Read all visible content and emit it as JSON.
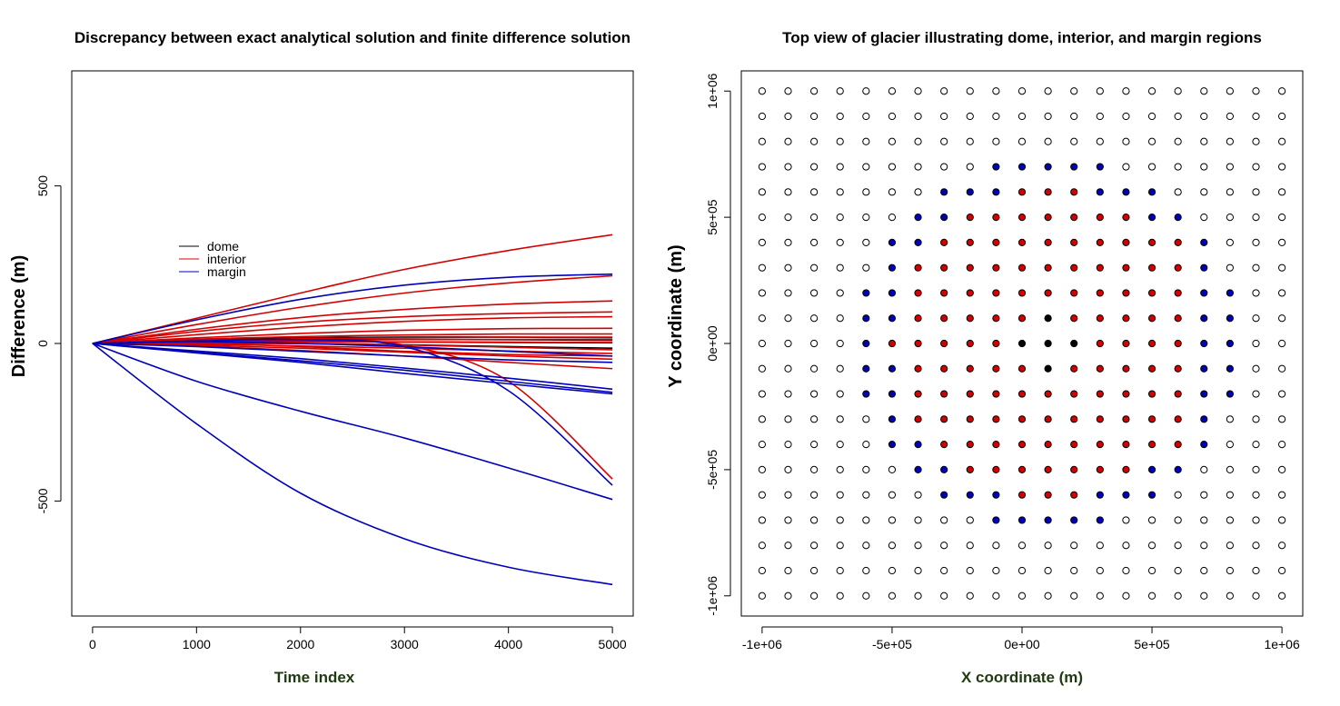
{
  "colors": {
    "dome": "#000000",
    "interior": "#d40000",
    "margin": "#0000b8"
  },
  "chart_data": [
    {
      "type": "line",
      "title": "Discrepancy between exact analytical solution and finite difference solution",
      "xlabel": "Time index",
      "ylabel": "Difference (m)",
      "xlim": [
        -200,
        5200
      ],
      "ylim": [
        -865,
        865
      ],
      "xticks": [
        0,
        1000,
        2000,
        3000,
        4000,
        5000
      ],
      "xtick_labels": [
        "0",
        "1000",
        "2000",
        "3000",
        "4000",
        "5000"
      ],
      "yticks": [
        -500,
        0,
        500
      ],
      "ytick_labels": [
        "-500",
        "0",
        "500"
      ],
      "legend": {
        "position": "upper-left-center",
        "entries": [
          {
            "label": "dome",
            "group": "dome"
          },
          {
            "label": "interior",
            "group": "interior"
          },
          {
            "label": "margin",
            "group": "margin"
          }
        ]
      },
      "series": [
        {
          "name": "dome-1",
          "group": "dome",
          "x": [
            0,
            1000,
            2000,
            3000,
            4000,
            5000
          ],
          "y": [
            0,
            12,
            18,
            20,
            20,
            18
          ]
        },
        {
          "name": "dome-2",
          "group": "dome",
          "x": [
            0,
            1000,
            2000,
            3000,
            4000,
            5000
          ],
          "y": [
            0,
            8,
            12,
            13,
            12,
            10
          ]
        },
        {
          "name": "dome-3",
          "group": "dome",
          "x": [
            0,
            1000,
            2000,
            3000,
            4000,
            5000
          ],
          "y": [
            0,
            4,
            6,
            5,
            3,
            2
          ]
        },
        {
          "name": "dome-4",
          "group": "dome",
          "x": [
            0,
            1000,
            2000,
            3000,
            4000,
            5000
          ],
          "y": [
            0,
            1,
            0,
            -4,
            -10,
            -15
          ]
        },
        {
          "name": "interior-1",
          "group": "interior",
          "x": [
            0,
            1000,
            2000,
            3000,
            4000,
            5000
          ],
          "y": [
            0,
            80,
            160,
            235,
            295,
            345
          ]
        },
        {
          "name": "interior-2",
          "group": "interior",
          "x": [
            0,
            1000,
            2000,
            3000,
            4000,
            5000
          ],
          "y": [
            0,
            60,
            115,
            160,
            192,
            215
          ]
        },
        {
          "name": "interior-3",
          "group": "interior",
          "x": [
            0,
            1000,
            2000,
            3000,
            4000,
            5000
          ],
          "y": [
            0,
            45,
            82,
            108,
            125,
            135
          ]
        },
        {
          "name": "interior-4",
          "group": "interior",
          "x": [
            0,
            1000,
            2000,
            3000,
            4000,
            5000
          ],
          "y": [
            0,
            38,
            67,
            85,
            95,
            100
          ]
        },
        {
          "name": "interior-5",
          "group": "interior",
          "x": [
            0,
            1000,
            2000,
            3000,
            4000,
            5000
          ],
          "y": [
            0,
            28,
            52,
            70,
            81,
            85
          ]
        },
        {
          "name": "interior-6",
          "group": "interior",
          "x": [
            0,
            1000,
            2000,
            3000,
            4000,
            5000
          ],
          "y": [
            0,
            18,
            32,
            42,
            47,
            48
          ]
        },
        {
          "name": "interior-7",
          "group": "interior",
          "x": [
            0,
            1000,
            2000,
            3000,
            4000,
            5000
          ],
          "y": [
            0,
            14,
            22,
            27,
            30,
            30
          ]
        },
        {
          "name": "interior-8",
          "group": "interior",
          "x": [
            0,
            1000,
            2000,
            3000,
            4000,
            5000
          ],
          "y": [
            0,
            10,
            15,
            18,
            20,
            20
          ]
        },
        {
          "name": "interior-9",
          "group": "interior",
          "x": [
            0,
            1000,
            2000,
            3000,
            4000,
            5000
          ],
          "y": [
            0,
            6,
            10,
            12,
            13,
            12
          ]
        },
        {
          "name": "interior-10",
          "group": "interior",
          "x": [
            0,
            1000,
            2000,
            3000,
            4000,
            5000
          ],
          "y": [
            0,
            3,
            5,
            5,
            4,
            3
          ]
        },
        {
          "name": "interior-11",
          "group": "interior",
          "x": [
            0,
            1000,
            2000,
            3000,
            4000,
            5000
          ],
          "y": [
            0,
            2,
            -1,
            -5,
            -12,
            -20
          ]
        },
        {
          "name": "interior-12",
          "group": "interior",
          "x": [
            0,
            1000,
            2000,
            3000,
            4000,
            5000
          ],
          "y": [
            0,
            -2,
            -8,
            -15,
            -24,
            -32
          ]
        },
        {
          "name": "interior-13",
          "group": "interior",
          "x": [
            0,
            1000,
            2000,
            3000,
            4000,
            5000
          ],
          "y": [
            0,
            -5,
            -15,
            -28,
            -40,
            -50
          ]
        },
        {
          "name": "interior-14",
          "group": "interior",
          "x": [
            0,
            1000,
            2000,
            3000,
            4000,
            5000
          ],
          "y": [
            0,
            -8,
            -22,
            -40,
            -60,
            -80
          ]
        },
        {
          "name": "interior-15",
          "group": "interior",
          "x": [
            0,
            1000,
            2000,
            3000,
            4000,
            5000
          ],
          "y": [
            0,
            8,
            10,
            -5,
            -120,
            -430
          ]
        },
        {
          "name": "interior-16",
          "group": "interior",
          "x": [
            0,
            1000,
            2000,
            3000,
            4000,
            5000
          ],
          "y": [
            0,
            0,
            -10,
            -25,
            -35,
            -40
          ]
        },
        {
          "name": "margin-1",
          "group": "margin",
          "x": [
            0,
            1000,
            2000,
            3000,
            4000,
            5000
          ],
          "y": [
            0,
            -255,
            -475,
            -620,
            -710,
            -765
          ]
        },
        {
          "name": "margin-2",
          "group": "margin",
          "x": [
            0,
            1000,
            2000,
            3000,
            4000,
            5000
          ],
          "y": [
            0,
            -120,
            -215,
            -300,
            -395,
            -495
          ]
        },
        {
          "name": "margin-3",
          "group": "margin",
          "x": [
            0,
            1000,
            2000,
            3000,
            4000,
            5000
          ],
          "y": [
            0,
            -28,
            -55,
            -85,
            -120,
            -155
          ]
        },
        {
          "name": "margin-4",
          "group": "margin",
          "x": [
            0,
            1000,
            2000,
            3000,
            4000,
            5000
          ],
          "y": [
            0,
            -24,
            -48,
            -78,
            -110,
            -145
          ]
        },
        {
          "name": "margin-5",
          "group": "margin",
          "x": [
            0,
            1000,
            2000,
            3000,
            4000,
            5000
          ],
          "y": [
            0,
            75,
            140,
            185,
            210,
            220
          ]
        },
        {
          "name": "margin-6",
          "group": "margin",
          "x": [
            0,
            1000,
            2000,
            3000,
            4000,
            5000
          ],
          "y": [
            0,
            6,
            0,
            -10,
            -25,
            -40
          ]
        },
        {
          "name": "margin-7",
          "group": "margin",
          "x": [
            0,
            1000,
            2000,
            3000,
            4000,
            5000
          ],
          "y": [
            0,
            8,
            12,
            -10,
            -150,
            -450
          ]
        },
        {
          "name": "margin-8",
          "group": "margin",
          "x": [
            0,
            1000,
            2000,
            3000,
            4000,
            5000
          ],
          "y": [
            0,
            -10,
            -25,
            -40,
            -52,
            -60
          ]
        },
        {
          "name": "margin-9",
          "group": "margin",
          "x": [
            0,
            1000,
            2000,
            3000,
            4000,
            5000
          ],
          "y": [
            0,
            -30,
            -60,
            -95,
            -128,
            -160
          ]
        }
      ]
    },
    {
      "type": "scatter",
      "title": "Top view of glacier illustrating dome, interior, and margin regions",
      "xlabel": "X coordinate (m)",
      "ylabel": "Y coordinate (m)",
      "xlim": [
        -1080000,
        1080000
      ],
      "ylim": [
        -1080000,
        1080000
      ],
      "xticks": [
        -1000000,
        -500000,
        0,
        500000,
        1000000
      ],
      "xtick_labels": [
        "-1e+06",
        "-5e+05",
        "0e+00",
        "5e+05",
        "1e+06"
      ],
      "yticks": [
        -1000000,
        -500000,
        0,
        500000,
        1000000
      ],
      "ytick_labels": [
        "-1e+06",
        "-5e+05",
        "0e+00",
        "5e+05",
        "1e+06"
      ],
      "grid": {
        "start": -1000000,
        "step": 100000,
        "count": 21
      },
      "legend_codes": {
        "0": "outside",
        "1": "dome",
        "2": "interior",
        "3": "margin"
      },
      "region_rows_top_to_bottom": [
        "000000000000000000000",
        "000000000000000000000",
        "000000000000000000000",
        "000000000333330000000",
        "000000033322233300000",
        "000000332222222330000",
        "000003322222222223000",
        "000003222222222223000",
        "000033222222222223300",
        "000033222221222223300",
        "000032222211122223300",
        "000033222221222223300",
        "000033222222222223300",
        "000003222222222223000",
        "000003322222222223000",
        "000000332222222330000",
        "000000033322233300000",
        "000000000333330000000",
        "000000000000000000000",
        "000000000000000000000",
        "000000000000000000000"
      ]
    }
  ]
}
